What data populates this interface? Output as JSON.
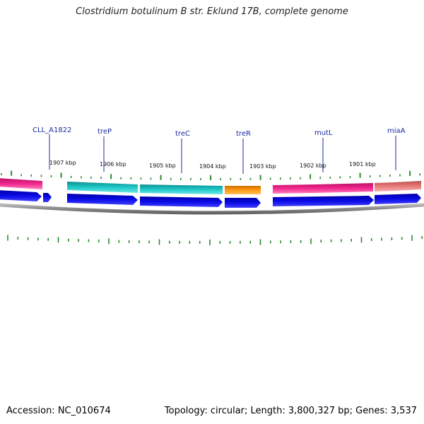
{
  "title": "Clostridium botulinum B str. Eklund 17B, complete genome",
  "footer": {
    "accession": "Accession: NC_010674",
    "topology": "Topology: circular; Length: 3,800,327 bp; Genes: 3,537"
  },
  "gene_labels": [
    "CLL_A1822",
    "treP",
    "treC",
    "treR",
    "mutL",
    "miaA"
  ],
  "scale_labels": [
    "1907 kbp",
    "1906 kbp",
    "1905 kbp",
    "1904 kbp",
    "1903 kbp",
    "1902 kbp",
    "1901 kbp"
  ],
  "colors": {
    "magenta": "#f0288c",
    "teal": "#1ec8c8",
    "orange": "#ff9a14",
    "salmon": "#e87a7a",
    "arrow_blue": "#0a0ae6",
    "label_blue": "#1a2aa0",
    "tick_green": "#2a8a2a",
    "backbone_gray": "#8a8a8a"
  }
}
